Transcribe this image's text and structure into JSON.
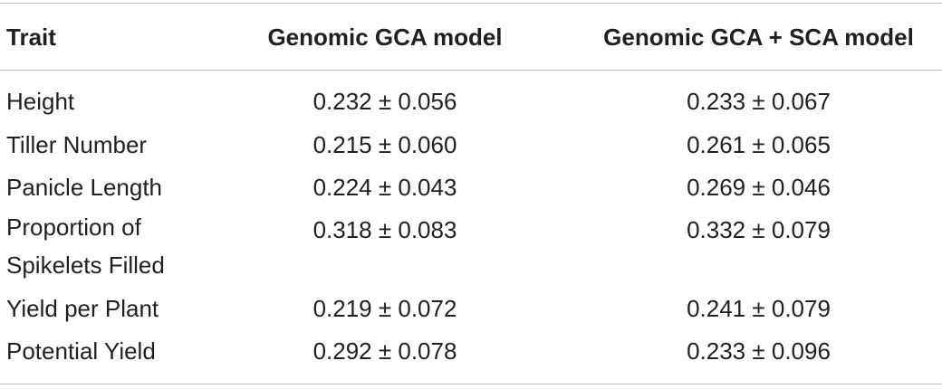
{
  "table": {
    "headers": [
      "Trait",
      "Genomic GCA model",
      "Genomic GCA + SCA model"
    ],
    "rows": [
      {
        "trait": "Height",
        "gca": "0.232 ± 0.056",
        "gca_sca": "0.233 ± 0.067"
      },
      {
        "trait": "Tiller Number",
        "gca": "0.215 ± 0.060",
        "gca_sca": "0.261 ± 0.065"
      },
      {
        "trait": "Panicle Length",
        "gca": "0.224 ± 0.043",
        "gca_sca": "0.269 ± 0.046"
      },
      {
        "trait": "Proportion of Spikelets Filled",
        "gca": "0.318 ± 0.083",
        "gca_sca": "0.332 ± 0.079"
      },
      {
        "trait": "Yield per Plant",
        "gca": "0.219 ± 0.072",
        "gca_sca": "0.241 ± 0.079"
      },
      {
        "trait": "Potential Yield",
        "gca": "0.292 ± 0.078",
        "gca_sca": "0.233 ± 0.096"
      }
    ]
  }
}
